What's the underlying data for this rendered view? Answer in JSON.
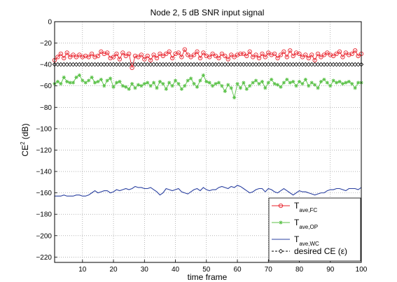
{
  "chart_data": {
    "type": "line",
    "title": "Node 2, 5 dB SNR input signal",
    "xlabel": "time frame",
    "ylabel": "CE",
    "ylabel_sup": "2",
    "ylabel_unit": "(dB)",
    "xlim": [
      1,
      100
    ],
    "ylim": [
      -225,
      0
    ],
    "xticks": [
      10,
      20,
      30,
      40,
      50,
      60,
      70,
      80,
      90,
      100
    ],
    "yticks": [
      0,
      -20,
      -40,
      -60,
      -80,
      -100,
      -120,
      -140,
      -160,
      -180,
      -200,
      -220
    ],
    "grid": true,
    "legend_position": "bottom-right",
    "series": [
      {
        "name": "T",
        "name_sub": "ave,FC",
        "color": "#e8202a",
        "marker": "circle",
        "values": [
          -36,
          -33,
          -30,
          -34,
          -29,
          -33,
          -31,
          -33,
          -31,
          -33,
          -32,
          -33,
          -30,
          -33,
          -32,
          -28,
          -30,
          -29,
          -34,
          -33,
          -30,
          -35,
          -29,
          -32,
          -30,
          -43,
          -32,
          -33,
          -31,
          -35,
          -32,
          -36,
          -31,
          -34,
          -30,
          -32,
          -30,
          -28,
          -34,
          -30,
          -29,
          -33,
          -26,
          -31,
          -33,
          -31,
          -28,
          -34,
          -29,
          -32,
          -33,
          -30,
          -32,
          -34,
          -30,
          -32,
          -35,
          -31,
          -33,
          -31,
          -30,
          -30,
          -32,
          -28,
          -33,
          -31,
          -34,
          -30,
          -33,
          -29,
          -31,
          -30,
          -34,
          -31,
          -28,
          -33,
          -27,
          -32,
          -29,
          -30,
          -33,
          -31,
          -34,
          -31,
          -36,
          -30,
          -33,
          -31,
          -29,
          -31,
          -32,
          -30,
          -28,
          -33,
          -29,
          -31,
          -30,
          -27,
          -32,
          -30
        ]
      },
      {
        "name": "T",
        "name_sub": "ave,OP",
        "color": "#5cc24a",
        "marker": "star",
        "values": [
          -58,
          -56,
          -58,
          -52,
          -56,
          -57,
          -57,
          -52,
          -50,
          -55,
          -57,
          -55,
          -52,
          -57,
          -56,
          -54,
          -60,
          -55,
          -53,
          -61,
          -57,
          -56,
          -60,
          -61,
          -63,
          -58,
          -62,
          -59,
          -60,
          -58,
          -57,
          -60,
          -57,
          -62,
          -56,
          -58,
          -63,
          -57,
          -60,
          -55,
          -58,
          -63,
          -60,
          -55,
          -53,
          -58,
          -61,
          -55,
          -50,
          -56,
          -57,
          -60,
          -58,
          -57,
          -60,
          -65,
          -59,
          -62,
          -71,
          -58,
          -62,
          -57,
          -63,
          -60,
          -57,
          -55,
          -58,
          -56,
          -62,
          -57,
          -54,
          -58,
          -59,
          -61,
          -57,
          -54,
          -57,
          -56,
          -60,
          -56,
          -58,
          -54,
          -60,
          -57,
          -59,
          -62,
          -56,
          -54,
          -57,
          -60,
          -55,
          -57,
          -56,
          -58,
          -57,
          -56,
          -58,
          -62,
          -57,
          -57
        ]
      },
      {
        "name": "T",
        "name_sub": "ave,WC",
        "color": "#2a40a0",
        "marker": "none",
        "values": [
          -163,
          -163,
          -163,
          -162,
          -163,
          -163,
          -163,
          -162,
          -162,
          -163,
          -163,
          -162,
          -160,
          -158,
          -160,
          -159,
          -158,
          -158,
          -160,
          -159,
          -157,
          -158,
          -157,
          -156,
          -157,
          -156,
          -154,
          -155,
          -155,
          -156,
          -156,
          -155,
          -157,
          -159,
          -162,
          -160,
          -156,
          -157,
          -158,
          -157,
          -156,
          -159,
          -160,
          -161,
          -159,
          -157,
          -156,
          -158,
          -155,
          -157,
          -158,
          -157,
          -157,
          -155,
          -154,
          -155,
          -156,
          -154,
          -155,
          -153,
          -154,
          -156,
          -158,
          -160,
          -159,
          -157,
          -156,
          -156,
          -159,
          -156,
          -157,
          -159,
          -160,
          -158,
          -156,
          -158,
          -160,
          -162,
          -160,
          -158,
          -159,
          -159,
          -160,
          -161,
          -162,
          -161,
          -160,
          -160,
          -158,
          -157,
          -157,
          -156,
          -156,
          -157,
          -158,
          -156,
          -156,
          -156,
          -157,
          -155
        ]
      },
      {
        "name": "desired CE (ε)",
        "color": "#000000",
        "marker": "diamond",
        "dashed": true,
        "values": [
          -40,
          -40,
          -40,
          -40,
          -40,
          -40,
          -40,
          -40,
          -40,
          -40,
          -40,
          -40,
          -40,
          -40,
          -40,
          -40,
          -40,
          -40,
          -40,
          -40,
          -40,
          -40,
          -40,
          -40,
          -40,
          -40,
          -40,
          -40,
          -40,
          -40,
          -40,
          -40,
          -40,
          -40,
          -40,
          -40,
          -40,
          -40,
          -40,
          -40,
          -40,
          -40,
          -40,
          -40,
          -40,
          -40,
          -40,
          -40,
          -40,
          -40,
          -40,
          -40,
          -40,
          -40,
          -40,
          -40,
          -40,
          -40,
          -40,
          -40,
          -40,
          -40,
          -40,
          -40,
          -40,
          -40,
          -40,
          -40,
          -40,
          -40,
          -40,
          -40,
          -40,
          -40,
          -40,
          -40,
          -40,
          -40,
          -40,
          -40,
          -40,
          -40,
          -40,
          -40,
          -40,
          -40,
          -40,
          -40,
          -40,
          -40,
          -40,
          -40,
          -40,
          -40,
          -40,
          -40,
          -40,
          -40,
          -40,
          -40
        ]
      }
    ]
  }
}
